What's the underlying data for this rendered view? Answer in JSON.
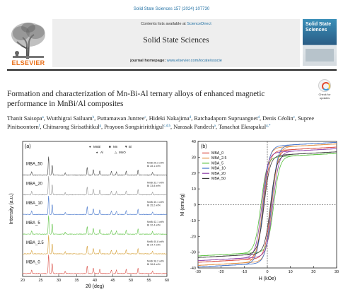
{
  "journal_ref": "Solid State Sciences 157 (2024) 107730",
  "header": {
    "contents_prefix": "Contents lists available at",
    "contents_link": "ScienceDirect",
    "journal_title": "Solid State Sciences",
    "homepage_prefix": "journal homepage:",
    "homepage_url": "www.elsevier.com/locate/ssscie",
    "publisher": "ELSEVIER",
    "cover_title": "Solid State Sciences",
    "check_updates": "Check for updates"
  },
  "paper": {
    "title": "Formation and characterization of Mn-Bi-Al ternary alloys of enhanced magnetic performance in MnBi/Al composites",
    "authors": [
      {
        "name": "Thanit Saisopa",
        "sup": "a"
      },
      {
        "name": "Wutthigrai Sailuam",
        "sup": "b"
      },
      {
        "name": "Puttamawan Juntree",
        "sup": "c"
      },
      {
        "name": "Hideki Nakajima",
        "sup": "d"
      },
      {
        "name": "Ratchadaporn Supruangnet",
        "sup": "d"
      },
      {
        "name": "Denis Céolin",
        "sup": "e"
      },
      {
        "name": "Supree Pinitsoontorn",
        "sup": "f"
      },
      {
        "name": "Chitnarong Sirisathitkul",
        "sup": "g"
      },
      {
        "name": "Prayoon Songsiriritthigul",
        "sup": "c,d,h"
      },
      {
        "name": "Narasak Pandech",
        "sup": "a"
      },
      {
        "name": "Tanachat Eknapakul",
        "sup": "g,*"
      }
    ]
  },
  "colors": {
    "link": "#1f6fa3",
    "elsevier": "#e9711c"
  },
  "chart_data": [
    {
      "type": "line",
      "panel": "(a)",
      "xlabel": "2θ (deg)",
      "ylabel": "Intensity (a.u.)",
      "xlim": [
        20,
        60
      ],
      "xticks": [
        20,
        25,
        30,
        35,
        40,
        45,
        50,
        55,
        60
      ],
      "legend": [
        {
          "symbol": "●",
          "label": "MnBi"
        },
        {
          "symbol": "■",
          "label": "Mn"
        },
        {
          "symbol": "▼",
          "label": "Bi"
        },
        {
          "symbol": "♦",
          "label": "Al"
        },
        {
          "symbol": "△",
          "label": "MnO"
        }
      ],
      "series": [
        {
          "name": "MBA_50",
          "color": "#3a3a3a",
          "composition": [
            "MnBi 25.3 wt%",
            "Bi 28.1 wt%"
          ]
        },
        {
          "name": "MBA_20",
          "color": "#8f8f8f",
          "composition": [
            "MnBi 33.7 wt%",
            "Bi 33.8 wt%"
          ]
        },
        {
          "name": "MBA_10",
          "color": "#3d6fc9",
          "composition": [
            "MnBi 40.1 wt%",
            "Bi 35.2 wt%"
          ]
        },
        {
          "name": "MBA_5",
          "color": "#57c03c",
          "composition": [
            "MnBi 42.1 wt%",
            "Bi 32.4 wt%"
          ]
        },
        {
          "name": "MBA_2.5",
          "color": "#d39a2c",
          "composition": [
            "MnBi 40.8 wt%",
            "Bi 34.7 wt%"
          ]
        },
        {
          "name": "MBA_0",
          "color": "#d8453b",
          "composition": [
            "MnBi 38.2 wt%",
            "Bi 36.8 wt%"
          ]
        }
      ],
      "peaks": [
        {
          "x": 22.5,
          "h": 0.18
        },
        {
          "x": 27.2,
          "h": 1.0
        },
        {
          "x": 28.2,
          "h": 0.55
        },
        {
          "x": 31.8,
          "h": 0.12
        },
        {
          "x": 37.9,
          "h": 0.42
        },
        {
          "x": 39.6,
          "h": 0.3
        },
        {
          "x": 41.4,
          "h": 0.25
        },
        {
          "x": 44.6,
          "h": 0.2
        },
        {
          "x": 46.0,
          "h": 0.18
        },
        {
          "x": 48.7,
          "h": 0.22
        },
        {
          "x": 52.0,
          "h": 0.28
        },
        {
          "x": 56.0,
          "h": 0.14
        }
      ]
    },
    {
      "type": "line",
      "panel": "(b)",
      "xlabel": "H (kOe)",
      "ylabel": "M (emu/g)",
      "xlim": [
        -30,
        30
      ],
      "ylim": [
        -40,
        40
      ],
      "xticks": [
        -30,
        -20,
        -10,
        0,
        10,
        20,
        30
      ],
      "yticks": [
        -40,
        -30,
        -20,
        -10,
        0,
        10,
        20,
        30,
        40
      ],
      "legend_position": "top-left",
      "series": [
        {
          "name": "MBA_0",
          "color": "#d8453b",
          "Ms": 34,
          "Hc": 1.6
        },
        {
          "name": "MBA_2.5",
          "color": "#e08a3a",
          "Ms": 36,
          "Hc": 2.0
        },
        {
          "name": "MBA_5",
          "color": "#57c03c",
          "Ms": 30,
          "Hc": 2.8
        },
        {
          "name": "MBA_10",
          "color": "#3d6fc9",
          "Ms": 37,
          "Hc": 1.8
        },
        {
          "name": "MBA_20",
          "color": "#8e3fa8",
          "Ms": 33,
          "Hc": 2.4
        },
        {
          "name": "MBA_50",
          "color": "#3a3a3a",
          "Ms": 31,
          "Hc": 1.4
        }
      ]
    }
  ]
}
